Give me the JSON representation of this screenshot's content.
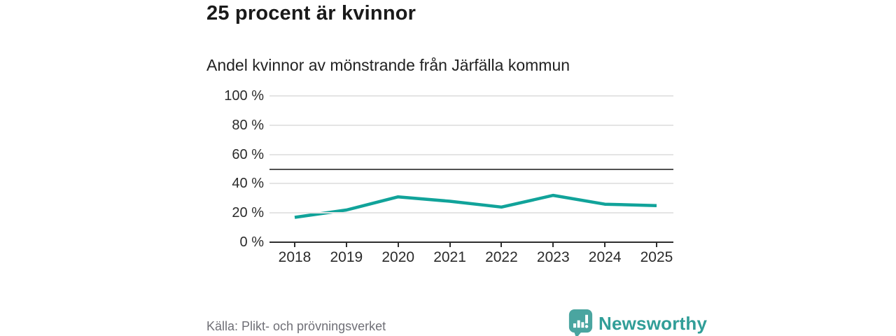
{
  "header": {
    "title": "25 procent är kvinnor",
    "subtitle": "Andel kvinnor av mönstrande från Järfälla kommun"
  },
  "chart_data": {
    "type": "line",
    "title": "25 procent är kvinnor",
    "subtitle": "Andel kvinnor av mönstrande från Järfälla kommun",
    "categories": [
      "2018",
      "2019",
      "2020",
      "2021",
      "2022",
      "2023",
      "2024",
      "2025"
    ],
    "series": [
      {
        "name": "Andel kvinnor av mönstrande",
        "values": [
          17,
          22,
          31,
          28,
          24,
          32,
          26,
          25
        ]
      }
    ],
    "xlabel": "",
    "ylabel": "",
    "ylim": [
      0,
      100
    ],
    "yticks": [
      0,
      20,
      40,
      60,
      80,
      100
    ],
    "ytick_labels": [
      "0 %",
      "20 %",
      "40 %",
      "60 %",
      "80 %",
      "100 %"
    ],
    "reference_line": 50,
    "grid": true,
    "legend": "none",
    "line_color": "#11a39a"
  },
  "footer": {
    "source": "Källa: Plikt- och prövningsverket",
    "brand": "Newsworthy"
  },
  "colors": {
    "line": "#11a39a",
    "gridline": "#e4e4e4",
    "reference_line": "#525252",
    "axis": "#2e2e2e",
    "text": "#1a1a1a",
    "source_text": "#6f6f76",
    "brand_teal": "#4aa5a0",
    "brand_text": "#319e98"
  }
}
